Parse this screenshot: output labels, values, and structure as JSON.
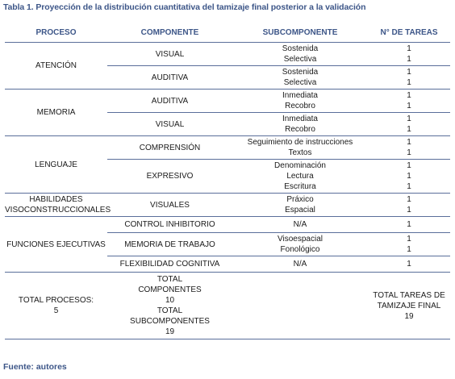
{
  "caption": "Tabla 1. Proyección de la distribución cuantitativa del tamizaje final posterior a la validación",
  "headers": [
    "PROCESO",
    "COMPONENTE",
    "SUBCOMPONENTE",
    "N° DE TAREAS"
  ],
  "atencion": {
    "proceso": "ATENCIÓN",
    "visual": {
      "label": "VISUAL",
      "sub": [
        "Sostenida",
        "Selectiva"
      ],
      "tareas": [
        "1",
        "1"
      ]
    },
    "auditiva": {
      "label": "AUDITIVA",
      "sub": [
        "Sostenida",
        "Selectiva"
      ],
      "tareas": [
        "1",
        "1"
      ]
    }
  },
  "memoria": {
    "proceso": "MEMORIA",
    "auditiva": {
      "label": "AUDITIVA",
      "sub": [
        "Inmediata",
        "Recobro"
      ],
      "tareas": [
        "1",
        "1"
      ]
    },
    "visual": {
      "label": "VISUAL",
      "sub": [
        "Inmediata",
        "Recobro"
      ],
      "tareas": [
        "1",
        "1"
      ]
    }
  },
  "lenguaje": {
    "proceso": "LENGUAJE",
    "comprension": {
      "label": "COMPRENSIÓN",
      "sub": [
        "Seguimiento de instrucciones",
        "Textos"
      ],
      "tareas": [
        "1",
        "1"
      ]
    },
    "expresivo": {
      "label": "EXPRESIVO",
      "sub": [
        "Denominación",
        "Lectura",
        "Escritura"
      ],
      "tareas": [
        "1",
        "1",
        "1"
      ]
    }
  },
  "habilidades": {
    "proceso": [
      "HABILIDADES",
      "VISOCONSTRUCCIONALES"
    ],
    "visuales": {
      "label": "VISUALES",
      "sub": [
        "Práxico",
        "Espacial"
      ],
      "tareas": [
        "1",
        "1"
      ]
    }
  },
  "funciones": {
    "proceso": "FUNCIONES EJECUTIVAS",
    "control": {
      "label": "CONTROL INHIBITORIO",
      "sub": [
        "N/A"
      ],
      "tareas": [
        "1"
      ]
    },
    "memoria_trabajo": {
      "label": "MEMORIA DE TRABAJO",
      "sub": [
        "Visoespacial",
        "Fonológico"
      ],
      "tareas": [
        "1",
        "1"
      ]
    },
    "flexibilidad": {
      "label": "FLEXIBILIDAD COGNITIVA",
      "sub": [
        "N/A"
      ],
      "tareas": [
        "1"
      ]
    }
  },
  "totals": {
    "procesos": [
      "TOTAL PROCESOS:",
      "5"
    ],
    "componentes": [
      "TOTAL",
      "COMPONENTES",
      "10",
      "TOTAL",
      "SUBCOMPONENTES",
      "19"
    ],
    "tareas": [
      "TOTAL TAREAS DE",
      "TAMIZAJE FINAL",
      "19"
    ]
  },
  "source": "Fuente: autores"
}
